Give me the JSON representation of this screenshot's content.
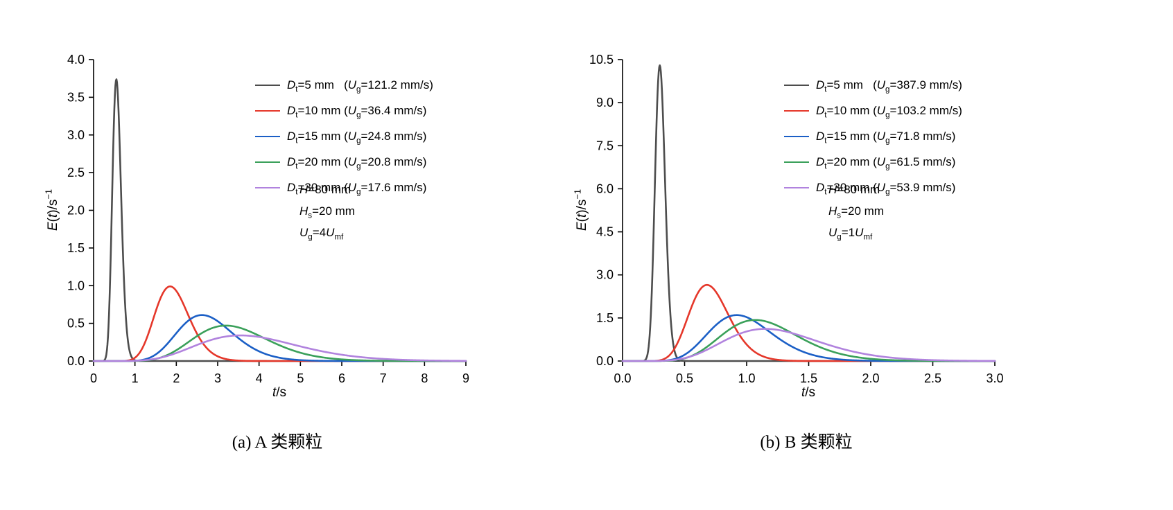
{
  "page": {
    "background": "#ffffff"
  },
  "chart_data": [
    {
      "id": "a",
      "type": "line",
      "caption": "(a) A 类颗粒",
      "xlabel": "*t*/s",
      "ylabel": "*E*(*t*)/s^−1^",
      "xlim": [
        0,
        9
      ],
      "ylim": [
        0,
        4.0
      ],
      "xticks": [
        0,
        1,
        2,
        3,
        4,
        5,
        6,
        7,
        8,
        9
      ],
      "xtick_labels": [
        "0",
        "1",
        "2",
        "3",
        "4",
        "5",
        "6",
        "7",
        "8",
        "9"
      ],
      "yticks": [
        0,
        0.5,
        1.0,
        1.5,
        2.0,
        2.5,
        3.0,
        3.5,
        4.0
      ],
      "ytick_labels": [
        "0.0",
        "0.5",
        "1.0",
        "1.5",
        "2.0",
        "2.5",
        "3.0",
        "3.5",
        "4.0"
      ],
      "grid": false,
      "legend_position": "inside-top-right",
      "curve_model": "gamma-peak: E(t)=peak_value*exp((shape-1)*(ln(t/peak_t)+1-t/peak_t))",
      "annotation": [
        "*H*=80 mm",
        "*H*_s_=20 mm",
        "*U*_g_=4*U*_mf_"
      ],
      "series": [
        {
          "name": "*D*_t_=5 mm   (*U*_g_=121.2 mm/s)",
          "color": "#4d4d4d",
          "peak_t": 0.55,
          "peak_value": 3.74,
          "shape": 28
        },
        {
          "name": "*D*_t_=10 mm (*U*_g_=36.4 mm/s)",
          "color": "#e5372a",
          "peak_t": 1.85,
          "peak_value": 0.99,
          "shape": 21
        },
        {
          "name": "*D*_t_=15 mm (*U*_g_=24.8 mm/s)",
          "color": "#1b5fc6",
          "peak_t": 2.62,
          "peak_value": 0.61,
          "shape": 16
        },
        {
          "name": "*D*_t_=20 mm (*U*_g_=20.8 mm/s)",
          "color": "#3aa05a",
          "peak_t": 3.2,
          "peak_value": 0.47,
          "shape": 13.5
        },
        {
          "name": "*D*_t_=30 mm (*U*_g_=17.6 mm/s)",
          "color": "#b183de",
          "peak_t": 3.55,
          "peak_value": 0.34,
          "shape": 9.5
        }
      ]
    },
    {
      "id": "b",
      "type": "line",
      "caption": "(b) B 类颗粒",
      "xlabel": "*t*/s",
      "ylabel": "*E*(*t*)/s^−1^",
      "xlim": [
        0,
        3.0
      ],
      "ylim": [
        0,
        10.5
      ],
      "xticks": [
        0,
        0.5,
        1.0,
        1.5,
        2.0,
        2.5,
        3.0
      ],
      "xtick_labels": [
        "0.0",
        "0.5",
        "1.0",
        "1.5",
        "2.0",
        "2.5",
        "3.0"
      ],
      "yticks": [
        0,
        1.5,
        3.0,
        4.5,
        6.0,
        7.5,
        9.0,
        10.5
      ],
      "ytick_labels": [
        "0.0",
        "1.5",
        "3.0",
        "4.5",
        "6.0",
        "7.5",
        "9.0",
        "10.5"
      ],
      "grid": false,
      "legend_position": "inside-top-right",
      "curve_model": "gamma-peak: E(t)=peak_value*exp((shape-1)*(ln(t/peak_t)+1-t/peak_t))",
      "annotation": [
        "*H*=80 mm",
        "*H*_s_=20 mm",
        "*U*_g_=1*U*_mf_"
      ],
      "series": [
        {
          "name": "*D*_t_=5 mm   (*U*_g_=387.9 mm/s)",
          "color": "#4d4d4d",
          "peak_t": 0.3,
          "peak_value": 10.3,
          "shape": 55
        },
        {
          "name": "*D*_t_=10 mm (*U*_g_=103.2 mm/s)",
          "color": "#e5372a",
          "peak_t": 0.68,
          "peak_value": 2.65,
          "shape": 19
        },
        {
          "name": "*D*_t_=15 mm (*U*_g_=71.8 mm/s)",
          "color": "#1b5fc6",
          "peak_t": 0.92,
          "peak_value": 1.6,
          "shape": 14
        },
        {
          "name": "*D*_t_=20 mm (*U*_g_=61.5 mm/s)",
          "color": "#3aa05a",
          "peak_t": 1.07,
          "peak_value": 1.43,
          "shape": 13
        },
        {
          "name": "*D*_t_=30 mm (*U*_g_=53.9 mm/s)",
          "color": "#b183de",
          "peak_t": 1.15,
          "peak_value": 1.12,
          "shape": 10
        }
      ]
    }
  ]
}
